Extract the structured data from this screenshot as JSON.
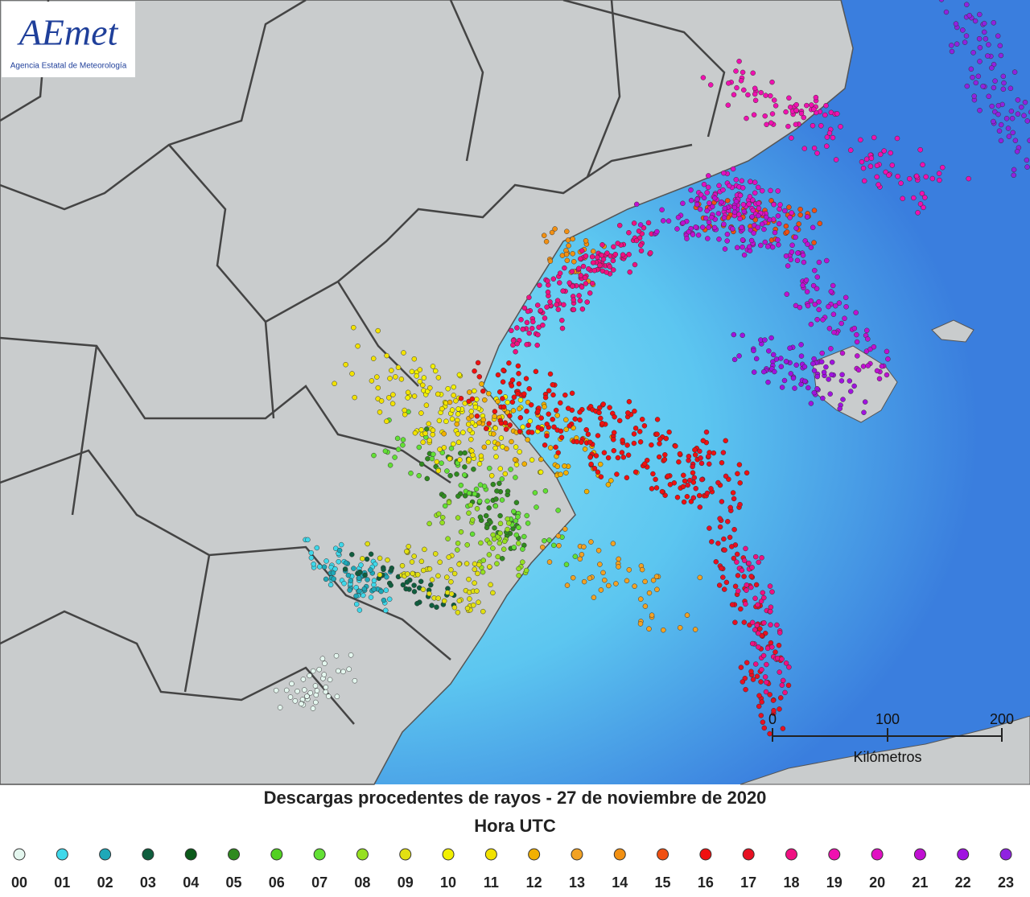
{
  "logo": {
    "name": "AEmet",
    "subtitle": "Agencia Estatal de Meteorología"
  },
  "scale_bar": {
    "ticks": [
      "0",
      "100",
      "200"
    ],
    "unit": "Kilómetros"
  },
  "title": "Descargas procedentes de rayos - 27 de noviembre de 2020",
  "legend": {
    "title": "Hora UTC",
    "items": [
      {
        "label": "00",
        "color": "#e4f7ef"
      },
      {
        "label": "01",
        "color": "#3fd8ea"
      },
      {
        "label": "02",
        "color": "#1ea8b8"
      },
      {
        "label": "03",
        "color": "#0f5e3e"
      },
      {
        "label": "04",
        "color": "#0b5a1a"
      },
      {
        "label": "05",
        "color": "#2f8a1f"
      },
      {
        "label": "06",
        "color": "#52d022"
      },
      {
        "label": "07",
        "color": "#62e034"
      },
      {
        "label": "08",
        "color": "#96e020"
      },
      {
        "label": "09",
        "color": "#e2e012"
      },
      {
        "label": "10",
        "color": "#f2f000"
      },
      {
        "label": "11",
        "color": "#f2e200"
      },
      {
        "label": "12",
        "color": "#f2b000"
      },
      {
        "label": "13",
        "color": "#f2a224"
      },
      {
        "label": "14",
        "color": "#f29012"
      },
      {
        "label": "15",
        "color": "#f05012"
      },
      {
        "label": "16",
        "color": "#f01010"
      },
      {
        "label": "17",
        "color": "#e81022"
      },
      {
        "label": "18",
        "color": "#f01082"
      },
      {
        "label": "19",
        "color": "#f010b0"
      },
      {
        "label": "20",
        "color": "#e010c2"
      },
      {
        "label": "21",
        "color": "#c010d2"
      },
      {
        "label": "22",
        "color": "#a012e0"
      },
      {
        "label": "23",
        "color": "#9022e0"
      }
    ]
  }
}
